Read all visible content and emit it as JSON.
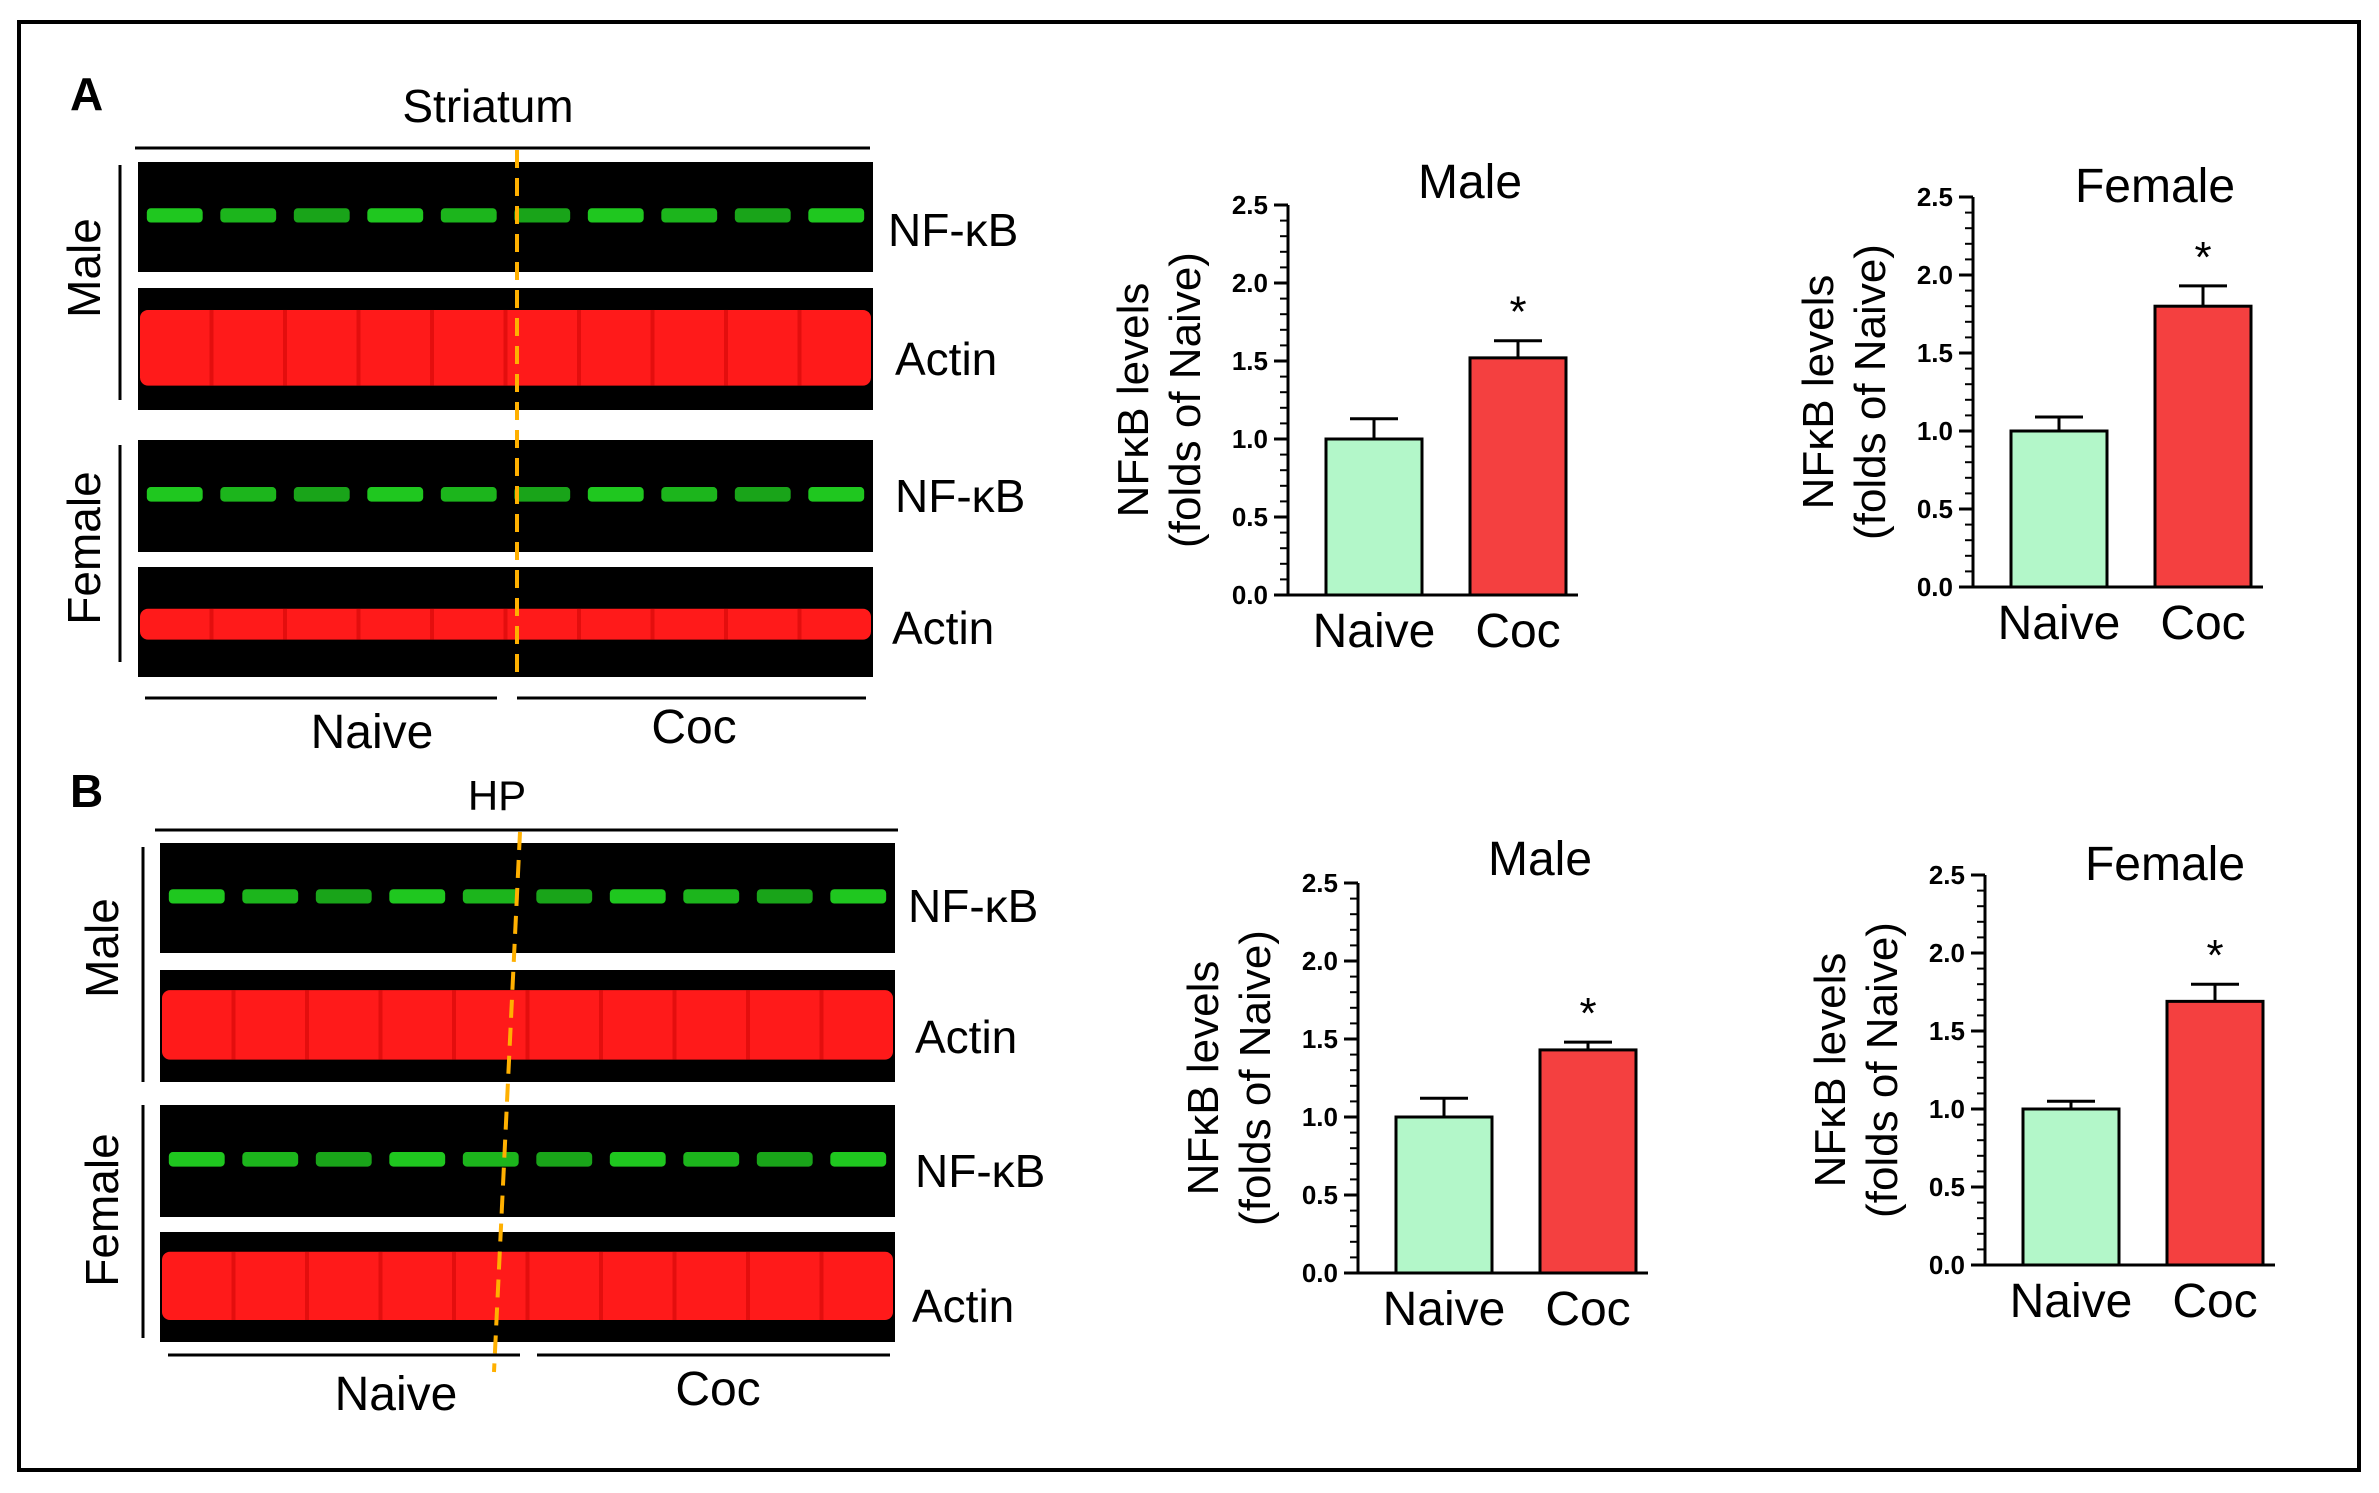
{
  "panel_a": {
    "letter": "A",
    "region": "Striatum",
    "sex_labels": [
      "Male",
      "Female"
    ],
    "band_labels": [
      "NF-κB",
      "Actin",
      "NF-κB",
      "Actin"
    ],
    "group_labels": [
      "Naive",
      "Coc"
    ]
  },
  "panel_b": {
    "letter": "B",
    "region": "HP",
    "sex_labels": [
      "Male",
      "Female"
    ],
    "band_labels": [
      "NF-κB",
      "Actin",
      "NF-κB",
      "Actin"
    ],
    "group_labels": [
      "Naive",
      "Coc"
    ]
  },
  "colors": {
    "naive_bar": "#b3f7c9",
    "coc_bar": "#f44040",
    "blot_bg": "#000000",
    "nfkb_band": "#22dd22",
    "actin_band": "#ff1a1a",
    "divider": "#ffb000"
  },
  "chart_data": [
    {
      "id": "a-male",
      "type": "bar",
      "title": "Male",
      "ylabel": [
        "NFκB levels",
        "(folds of Naive)"
      ],
      "categories": [
        "Naive",
        "Coc"
      ],
      "values": [
        1.0,
        1.52
      ],
      "errors": [
        0.13,
        0.11
      ],
      "significance": [
        "",
        "*"
      ],
      "ylim": [
        0,
        2.5
      ],
      "yticks": [
        "0.0",
        "0.5",
        "1.0",
        "1.5",
        "2.0",
        "2.5"
      ]
    },
    {
      "id": "a-female",
      "type": "bar",
      "title": "Female",
      "ylabel": [
        "NFκB levels",
        "(folds of Naive)"
      ],
      "categories": [
        "Naive",
        "Coc"
      ],
      "values": [
        1.0,
        1.8
      ],
      "errors": [
        0.09,
        0.13
      ],
      "significance": [
        "",
        "*"
      ],
      "ylim": [
        0,
        2.5
      ],
      "yticks": [
        "0.0",
        "0.5",
        "1.0",
        "1.5",
        "2.0",
        "2.5"
      ]
    },
    {
      "id": "b-male",
      "type": "bar",
      "title": "Male",
      "ylabel": [
        "NFκB levels",
        "(folds of Naive)"
      ],
      "categories": [
        "Naive",
        "Coc"
      ],
      "values": [
        1.0,
        1.43
      ],
      "errors": [
        0.12,
        0.05
      ],
      "significance": [
        "",
        "*"
      ],
      "ylim": [
        0,
        2.5
      ],
      "yticks": [
        "0.0",
        "0.5",
        "1.0",
        "1.5",
        "2.0",
        "2.5"
      ]
    },
    {
      "id": "b-female",
      "type": "bar",
      "title": "Female",
      "ylabel": [
        "NFκB levels",
        "(folds of Naive)"
      ],
      "categories": [
        "Naive",
        "Coc"
      ],
      "values": [
        1.0,
        1.69
      ],
      "errors": [
        0.05,
        0.11
      ],
      "significance": [
        "",
        "*"
      ],
      "ylim": [
        0,
        2.5
      ],
      "yticks": [
        "0.0",
        "0.5",
        "1.0",
        "1.5",
        "2.0",
        "2.5"
      ]
    }
  ]
}
